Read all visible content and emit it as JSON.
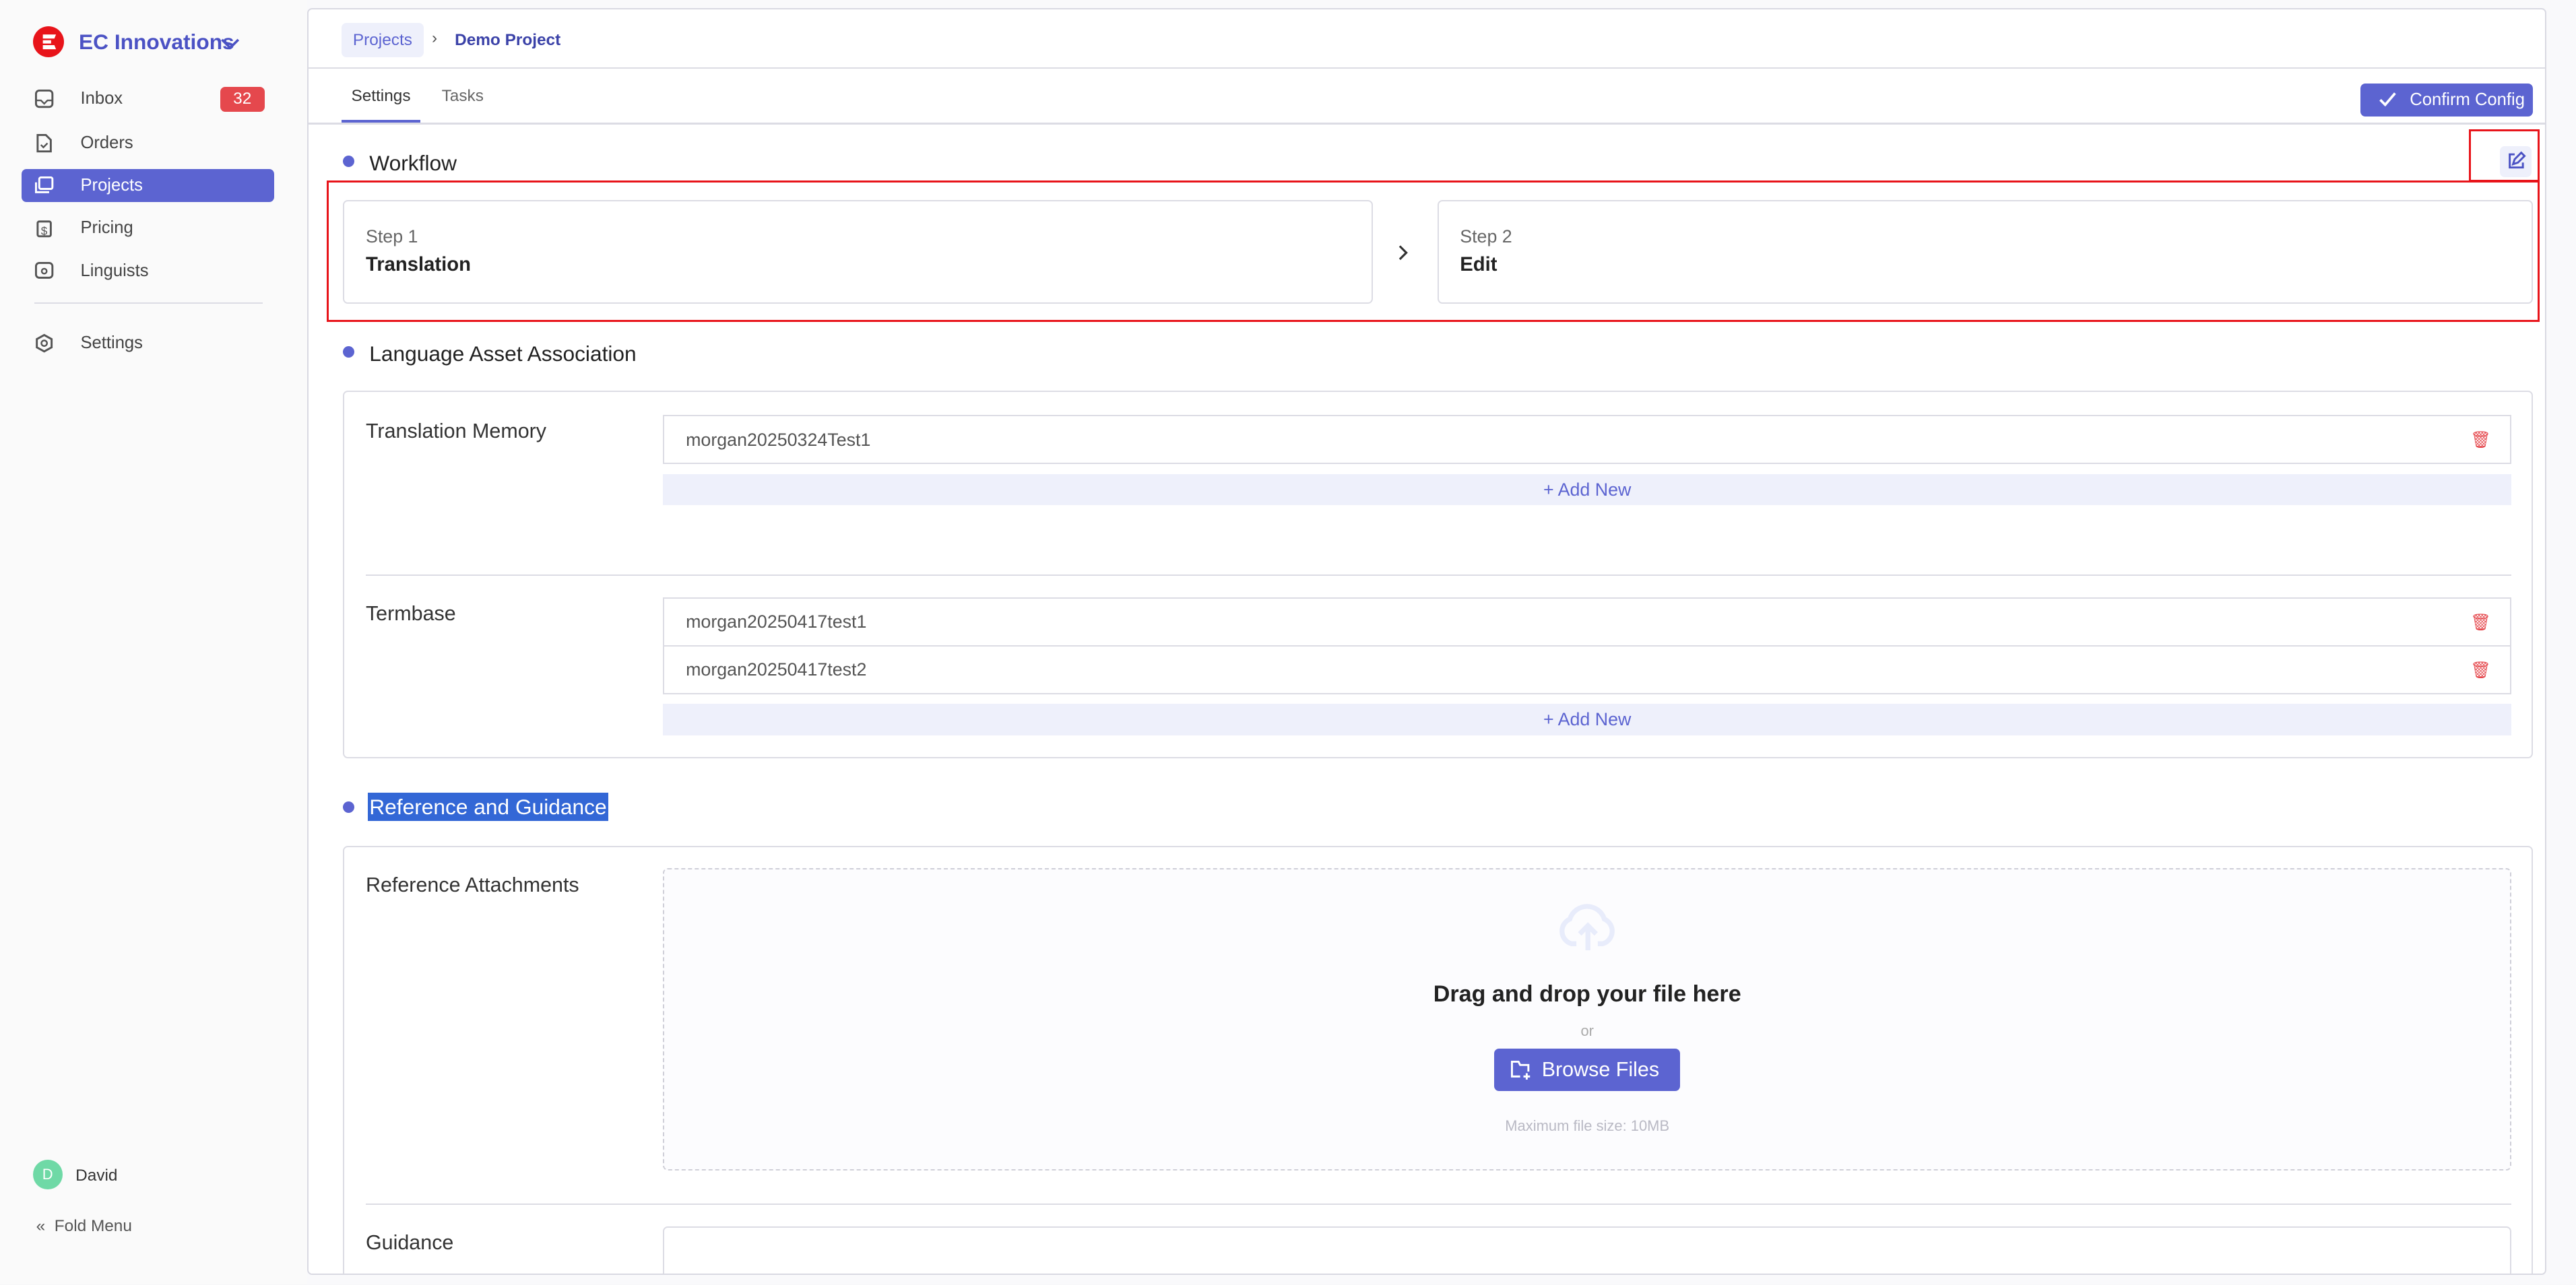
{
  "sidebar": {
    "brand": "EC Innovations",
    "items": [
      {
        "label": "Inbox",
        "badge": "32"
      },
      {
        "label": "Orders"
      },
      {
        "label": "Projects",
        "active": true
      },
      {
        "label": "Pricing"
      },
      {
        "label": "Linguists"
      },
      {
        "label": "Settings"
      }
    ],
    "user": {
      "initial": "D",
      "name": "David"
    },
    "fold": "Fold Menu"
  },
  "breadcrumb": {
    "root": "Projects",
    "current": "Demo Project"
  },
  "tabs": [
    {
      "label": "Settings",
      "active": true
    },
    {
      "label": "Tasks"
    }
  ],
  "confirm_label": "Confirm Config",
  "workflow": {
    "title": "Workflow",
    "steps": [
      {
        "step": "Step 1",
        "name": "Translation"
      },
      {
        "step": "Step 2",
        "name": "Edit"
      }
    ]
  },
  "assets": {
    "title": "Language Asset Association",
    "tm_label": "Translation Memory",
    "tm": [
      "morgan20250324Test1"
    ],
    "tb_label": "Termbase",
    "tb": [
      "morgan20250417test1",
      "morgan20250417test2"
    ],
    "add_new": "+ Add New"
  },
  "reference": {
    "title": "Reference and Guidance",
    "attachments_label": "Reference Attachments",
    "drop": "Drag and drop your file here",
    "or": "or",
    "browse": "Browse Files",
    "max": "Maximum file size: 10MB",
    "guidance_label": "Guidance"
  },
  "colors": {
    "accent": "#5c64d1",
    "danger": "#e5484d",
    "highlight": "#e8141a"
  }
}
